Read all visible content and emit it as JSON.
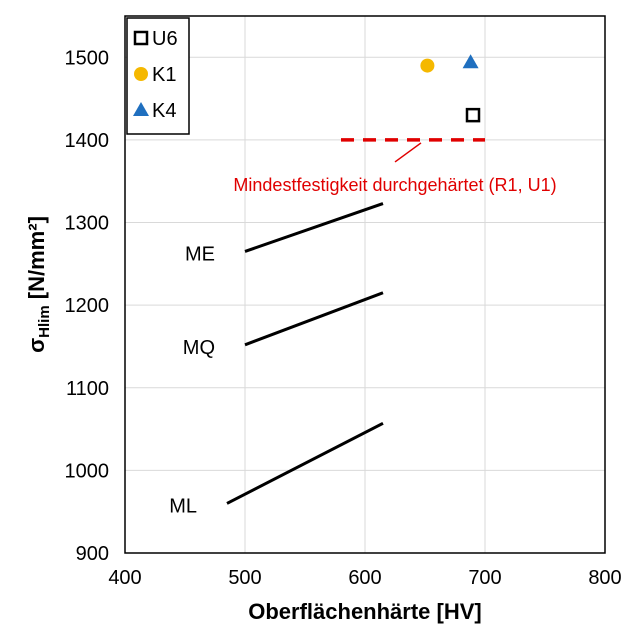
{
  "chart_data": {
    "type": "scatter",
    "xlabel": "Oberflächenhärte [HV]",
    "ylabel_main": "σ",
    "ylabel_sub": "Hlim",
    "ylabel_unit": " [N/mm²]",
    "xlim": [
      400,
      800
    ],
    "ylim": [
      900,
      1550
    ],
    "xticks": [
      400,
      500,
      600,
      700,
      800
    ],
    "yticks": [
      900,
      1000,
      1100,
      1200,
      1300,
      1400,
      1500
    ],
    "grid": true,
    "legend_position": "top-left",
    "series": [
      {
        "name": "U6",
        "marker": "open-square",
        "color": "#000000",
        "points": [
          {
            "x": 690,
            "y": 1430
          }
        ]
      },
      {
        "name": "K1",
        "marker": "circle",
        "color": "#f5b800",
        "points": [
          {
            "x": 652,
            "y": 1490
          }
        ]
      },
      {
        "name": "K4",
        "marker": "triangle",
        "color": "#1f6fbf",
        "points": [
          {
            "x": 688,
            "y": 1494
          }
        ]
      }
    ],
    "lines": [
      {
        "label": "ME",
        "x": [
          500,
          615
        ],
        "y": [
          1265,
          1323
        ],
        "color": "#000000"
      },
      {
        "label": "MQ",
        "x": [
          500,
          615
        ],
        "y": [
          1152,
          1215
        ],
        "color": "#000000"
      },
      {
        "label": "ML",
        "x": [
          485,
          615
        ],
        "y": [
          960,
          1057
        ],
        "color": "#000000"
      }
    ],
    "reference_line": {
      "x": [
        580,
        700
      ],
      "y": 1400,
      "color": "#e00000",
      "style": "dashed"
    },
    "annotation": {
      "text": "Mindestfestigkeit durchgehärtet (R1, U1)",
      "color": "#e00000",
      "pointer_to": {
        "x": 650,
        "y": 1400
      }
    }
  }
}
